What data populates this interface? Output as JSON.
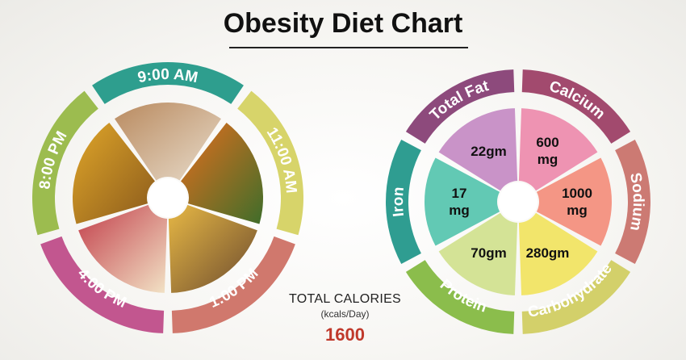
{
  "title": "Obesity Diet Chart",
  "meal_wheel": {
    "times": [
      {
        "label": "9:00 AM",
        "color": "#2e9e8e"
      },
      {
        "label": "11:00 AM",
        "color": "#d7d46a"
      },
      {
        "label": "1:00 PM",
        "color": "#d0786d"
      },
      {
        "label": "4:00 PM",
        "color": "#c2568f"
      },
      {
        "label": "8:00 PM",
        "color": "#9cbc4f"
      }
    ],
    "photos": [
      {
        "name": "eggs-photo",
        "colors": [
          "#b98a5f",
          "#e8dccb"
        ]
      },
      {
        "name": "papaya-photo",
        "colors": [
          "#e46f1e",
          "#3f6d2a"
        ]
      },
      {
        "name": "lentil-curry-photo",
        "colors": [
          "#e7b845",
          "#6b4a2e"
        ]
      },
      {
        "name": "soup-bowl-photo",
        "colors": [
          "#c23e4a",
          "#f2e3c6"
        ]
      },
      {
        "name": "vegetable-curry-photo",
        "colors": [
          "#e0a629",
          "#8a5a1c"
        ]
      }
    ]
  },
  "chart_data": {
    "type": "pie",
    "title": "Obesity Diet Chart",
    "categories": [
      "Total Fat",
      "Calcium",
      "Sodium",
      "Carbohydrate",
      "Protein",
      "Iron"
    ],
    "values": [
      "22gm",
      "600 mg",
      "1000 mg",
      "280gm",
      "70gm",
      "17 mg"
    ],
    "ring_colors": [
      "#8d4a7c",
      "#a24a6e",
      "#cc7a73",
      "#d3d06a",
      "#8bbd4c",
      "#2f9d91"
    ],
    "inner_colors": [
      "#c993c8",
      "#ee93b2",
      "#f49685",
      "#f2e56b",
      "#d4e396",
      "#62c9b4"
    ]
  },
  "totals": {
    "label": "TOTAL CALORIES",
    "unit": "(kcals/Day)",
    "value": "1600"
  }
}
